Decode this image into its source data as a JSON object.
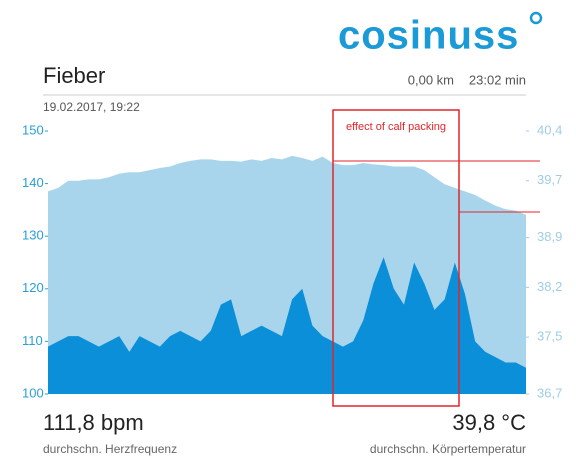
{
  "header": {
    "logo": "cosinuss",
    "title": "Fieber",
    "distance": "0,00 km",
    "duration": "23:02 min",
    "date": "19.02.2017, 19:22"
  },
  "chart_data": {
    "type": "area",
    "annotation": "effect of calf packing",
    "ylim": [
      100,
      150
    ],
    "yticks": [
      100,
      110,
      120,
      130,
      140,
      150
    ],
    "y2lim": [
      36.7,
      40.4
    ],
    "y2ticks": [
      {
        "value": 36.7,
        "label": "36,7"
      },
      {
        "value": 37.5,
        "label": "37,5"
      },
      {
        "value": 38.2,
        "label": "38,2"
      },
      {
        "value": 38.9,
        "label": "38,9"
      },
      {
        "value": 39.7,
        "label": "39,7"
      },
      {
        "value": 40.4,
        "label": "40,4"
      }
    ],
    "series": [
      {
        "color": "#a9d5ec",
        "axis": "y2",
        "values": [
          39.55,
          39.6,
          39.7,
          39.7,
          39.72,
          39.72,
          39.75,
          39.8,
          39.82,
          39.82,
          39.85,
          39.88,
          39.9,
          39.95,
          39.98,
          40.0,
          40.0,
          39.98,
          39.98,
          39.97,
          40.0,
          39.98,
          40.02,
          40.0,
          40.05,
          40.02,
          39.98,
          40.04,
          39.95,
          39.92,
          39.92,
          39.95,
          39.93,
          39.92,
          39.9,
          39.9,
          39.9,
          39.85,
          39.75,
          39.65,
          39.6,
          39.55,
          39.5,
          39.42,
          39.35,
          39.3,
          39.28,
          39.22
        ]
      },
      {
        "color": "#0a8fd8",
        "values": [
          109,
          110,
          111,
          111,
          110,
          109,
          110,
          111,
          108,
          111,
          110,
          109,
          111,
          112,
          111,
          110,
          112,
          117,
          118,
          111,
          112,
          113,
          112,
          111,
          118,
          120,
          113,
          111,
          110,
          109,
          110,
          114,
          121,
          126,
          120,
          117,
          125,
          121,
          116,
          118,
          125,
          119,
          110,
          108,
          107,
          106,
          106,
          105
        ]
      }
    ]
  },
  "footer": {
    "heart_rate": "111,8 bpm",
    "heart_rate_label": "durchschn. Herzfrequenz",
    "temperature": "39,8 °C",
    "temperature_label": "durchschn. Körpertemperatur"
  }
}
